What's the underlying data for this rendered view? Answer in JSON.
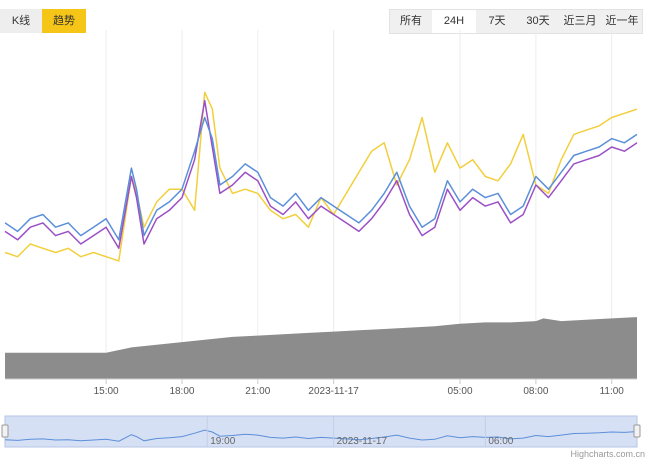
{
  "view_tabs": [
    {
      "label": "K线",
      "active": false
    },
    {
      "label": "趋势",
      "active": true
    }
  ],
  "range_buttons": [
    {
      "label": "所有",
      "active": false
    },
    {
      "label": "24H",
      "active": true
    },
    {
      "label": "7天",
      "active": false
    },
    {
      "label": "30天",
      "active": false
    },
    {
      "label": "近三月",
      "active": false
    },
    {
      "label": "近一年",
      "active": false
    }
  ],
  "credit": "Highcharts.com.cn",
  "colors": {
    "series_blue": "#5b8fd9",
    "series_purple": "#9b4fc6",
    "series_yellow": "#f2cf3d",
    "volume": "#8c8c8c",
    "navigator_fill": "#d6e0f5",
    "navigator_line": "#5b8fd9"
  },
  "chart_data": {
    "type": "line",
    "x_unit": "hours",
    "x_tick_labels": [
      {
        "x": 15,
        "label": "15:00"
      },
      {
        "x": 18,
        "label": "18:00"
      },
      {
        "x": 21,
        "label": "21:00"
      },
      {
        "x": 24,
        "label": "2023-11-17"
      },
      {
        "x": 29,
        "label": "05:00"
      },
      {
        "x": 32,
        "label": "08:00"
      },
      {
        "x": 35,
        "label": "11:00"
      }
    ],
    "navigator_tick_labels": [
      {
        "x": 19,
        "label": "19:00"
      },
      {
        "x": 24,
        "label": "2023-11-17"
      },
      {
        "x": 30,
        "label": "06:00"
      }
    ],
    "xlim": [
      11,
      36
    ],
    "grid": true,
    "legend": "none",
    "series": [
      {
        "role": "price_a",
        "color": "#5b8fd9",
        "x": [
          11.0,
          11.5,
          12.0,
          12.5,
          13.0,
          13.5,
          14.0,
          14.5,
          15.0,
          15.5,
          16.0,
          16.2,
          16.5,
          17.0,
          17.5,
          18.0,
          18.5,
          18.9,
          19.2,
          19.5,
          20.0,
          20.5,
          21.0,
          21.5,
          22.0,
          22.5,
          23.0,
          23.5,
          24.0,
          24.5,
          25.0,
          25.5,
          26.0,
          26.5,
          27.0,
          27.5,
          28.0,
          28.5,
          29.0,
          29.5,
          30.0,
          30.5,
          31.0,
          31.5,
          32.0,
          32.5,
          33.0,
          33.5,
          34.0,
          34.5,
          35.0,
          35.5,
          36.0
        ],
        "y": [
          41,
          43,
          40,
          39,
          42,
          41,
          44,
          42,
          40,
          45,
          28,
          33,
          44,
          38,
          36,
          33,
          24,
          16,
          21,
          32,
          30,
          27,
          29,
          35,
          37,
          34,
          38,
          35,
          37,
          39,
          41,
          38,
          34,
          29,
          37,
          42,
          40,
          31,
          36,
          33,
          35,
          34,
          39,
          37,
          30,
          33,
          29,
          25,
          24,
          23,
          21,
          22,
          20
        ]
      },
      {
        "role": "price_b",
        "color": "#9b4fc6",
        "x": [
          11.0,
          11.5,
          12.0,
          12.5,
          13.0,
          13.5,
          14.0,
          14.5,
          15.0,
          15.5,
          16.0,
          16.2,
          16.5,
          17.0,
          17.5,
          18.0,
          18.5,
          18.9,
          19.2,
          19.5,
          20.0,
          20.5,
          21.0,
          21.5,
          22.0,
          22.5,
          23.0,
          23.5,
          24.0,
          24.5,
          25.0,
          25.5,
          26.0,
          26.5,
          27.0,
          27.5,
          28.0,
          28.5,
          29.0,
          29.5,
          30.0,
          30.5,
          31.0,
          31.5,
          32.0,
          32.5,
          33.0,
          33.5,
          34.0,
          34.5,
          35.0,
          35.5,
          36.0
        ],
        "y": [
          43,
          45,
          42,
          41,
          44,
          43,
          46,
          44,
          42,
          47,
          30,
          35,
          46,
          40,
          38,
          35,
          26,
          12,
          23,
          34,
          32,
          29,
          31,
          37,
          39,
          36,
          40,
          37,
          39,
          41,
          43,
          40,
          36,
          31,
          39,
          44,
          42,
          33,
          38,
          35,
          37,
          36,
          41,
          39,
          32,
          35,
          31,
          27,
          26,
          25,
          23,
          24,
          22
        ]
      },
      {
        "role": "price_c",
        "color": "#f2cf3d",
        "x": [
          11.0,
          11.5,
          12.0,
          12.5,
          13.0,
          13.5,
          14.0,
          14.5,
          15.0,
          15.5,
          16.0,
          16.2,
          16.5,
          17.0,
          17.5,
          18.0,
          18.5,
          18.9,
          19.2,
          19.5,
          20.0,
          20.5,
          21.0,
          21.5,
          22.0,
          22.5,
          23.0,
          23.5,
          24.0,
          24.5,
          25.0,
          25.5,
          26.0,
          26.5,
          27.0,
          27.5,
          28.0,
          28.5,
          29.0,
          29.5,
          30.0,
          30.5,
          31.0,
          31.5,
          32.0,
          32.5,
          33.0,
          33.5,
          34.0,
          34.5,
          35.0,
          35.5,
          36.0
        ],
        "y": [
          48,
          49,
          46,
          47,
          48,
          47,
          49,
          48,
          49,
          50,
          30,
          34,
          42,
          36,
          33,
          33,
          38,
          10,
          14,
          28,
          34,
          33,
          34,
          38,
          40,
          39,
          42,
          35,
          39,
          34,
          29,
          24,
          22,
          32,
          26,
          16,
          29,
          22,
          28,
          26,
          30,
          31,
          27,
          20,
          32,
          34,
          26,
          20,
          19,
          18,
          16,
          15,
          14
        ]
      }
    ],
    "volume": {
      "role": "volume",
      "color": "#8c8c8c",
      "x": [
        11,
        14,
        15,
        16,
        17,
        18,
        19,
        20,
        21,
        22,
        23,
        24,
        25,
        26,
        27,
        28,
        29,
        30,
        31,
        32,
        32.3,
        33,
        34,
        35,
        36
      ],
      "y": [
        10,
        10,
        10,
        12,
        13,
        14,
        15,
        16,
        16.5,
        17,
        17.5,
        18,
        18.5,
        19,
        19.5,
        20,
        21,
        21.5,
        21.5,
        22,
        23,
        22,
        22.5,
        23,
        23.5
      ]
    }
  }
}
